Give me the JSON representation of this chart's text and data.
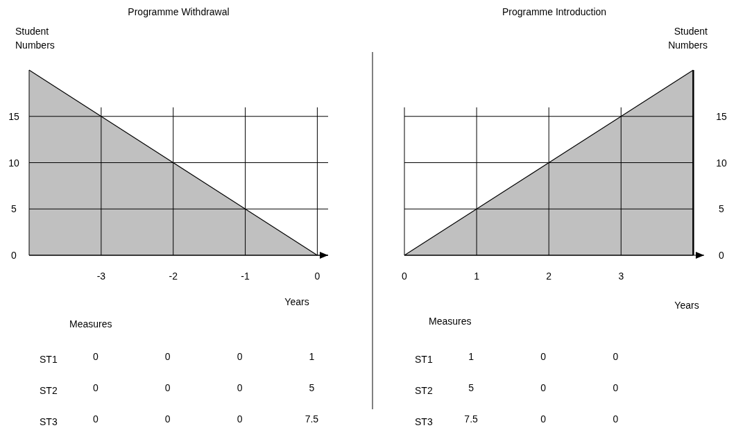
{
  "chart_data": [
    {
      "type": "area",
      "title": "Programme Withdrawal",
      "ylabel": "Student Numbers",
      "xlabel": "Years",
      "x": [
        -4,
        -3,
        -2,
        -1,
        0
      ],
      "series": [
        {
          "color": "#c0c0c0",
          "values": [
            20,
            15,
            10,
            5,
            0
          ]
        }
      ],
      "xlim": [
        -4,
        0.15
      ],
      "xticks": [
        -3,
        -2,
        -1,
        0
      ],
      "ylim": [
        0,
        20
      ],
      "yticks": [
        0,
        5,
        10,
        15
      ],
      "grid": true,
      "annotations": [
        "Measures",
        "ST1",
        "0",
        "0",
        "0",
        "1",
        "ST2",
        "0",
        "0",
        "0",
        "5",
        "ST3",
        "0",
        "0",
        "0",
        "7.5"
      ]
    },
    {
      "type": "area",
      "title": "Programme Introduction",
      "y2label": "Student Numbers",
      "xlabel": "Years",
      "x": [
        0,
        1,
        2,
        3,
        4
      ],
      "series": [
        {
          "color": "#c0c0c0",
          "values": [
            0,
            5,
            10,
            15,
            20
          ],
          "axis": "y2"
        }
      ],
      "xlim": [
        0,
        4.15
      ],
      "xticks": [
        0,
        1,
        2,
        3
      ],
      "y2lim": [
        0,
        20
      ],
      "y2ticks": [
        0,
        5,
        10,
        15
      ],
      "grid": true,
      "annotations": [
        "Measures",
        "ST1",
        "1",
        "0",
        "0",
        "ST2",
        "5",
        "0",
        "0",
        "ST3",
        "7.5",
        "0",
        "0"
      ]
    }
  ]
}
